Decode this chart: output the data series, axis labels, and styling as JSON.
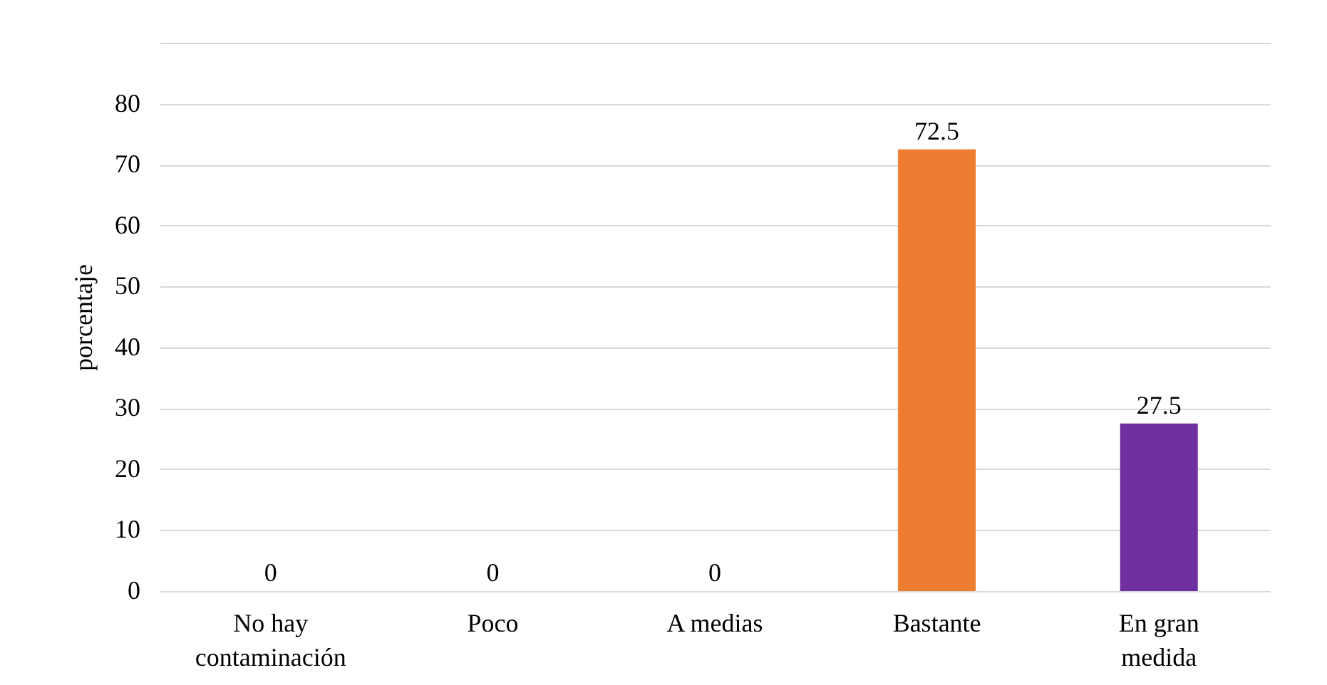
{
  "chart_data": {
    "type": "bar",
    "ylabel": "porcentaje",
    "categories": [
      "No hay contaminación",
      "Poco",
      "A medias",
      "Bastante",
      "En gran medida"
    ],
    "values": [
      0,
      0,
      0,
      72.5,
      27.5
    ],
    "colors": [
      "#990000",
      "#00893e",
      "#2f5597",
      "#ed7d31",
      "#7030a0"
    ],
    "ylim": [
      0,
      90
    ],
    "yticks": [
      0,
      10,
      20,
      30,
      40,
      50,
      60,
      70,
      80,
      {
        "value": 90,
        "label": null
      }
    ],
    "grid": "y",
    "data_labels": true
  }
}
